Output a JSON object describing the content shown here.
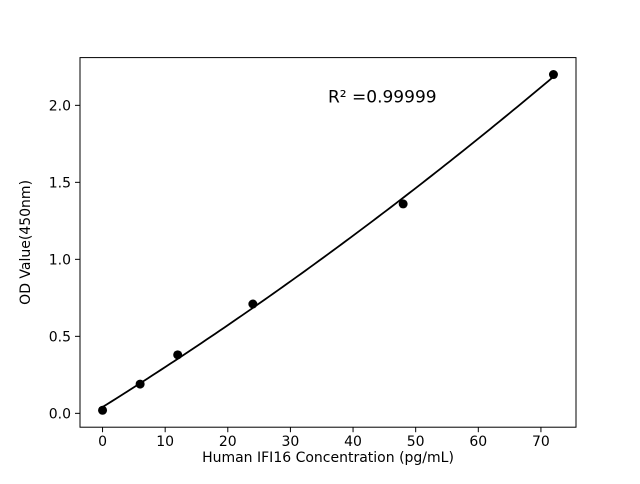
{
  "chart_data": {
    "type": "scatter",
    "x": [
      0,
      6,
      12,
      24,
      48,
      72
    ],
    "y": [
      0.02,
      0.19,
      0.38,
      0.71,
      1.36,
      2.2
    ],
    "fit": "quadratic",
    "title": "",
    "xlabel": "Human IFI16 Concentration (pg/mL)",
    "ylabel": "OD Value(450nm)",
    "xlim": [
      -3.6,
      75.6
    ],
    "ylim": [
      -0.09,
      2.31
    ],
    "xticks": [
      0,
      10,
      20,
      30,
      40,
      50,
      60,
      70
    ],
    "xtick_labels": [
      "0",
      "10",
      "20",
      "30",
      "40",
      "50",
      "60",
      "70"
    ],
    "yticks": [
      0.0,
      0.5,
      1.0,
      1.5,
      2.0
    ],
    "ytick_labels": [
      "0.0",
      "0.5",
      "1.0",
      "1.5",
      "2.0"
    ],
    "annotation": {
      "text": "R² =0.99999",
      "x": 36,
      "y": 2.02
    },
    "grid": false,
    "legend": null,
    "colors": {
      "line": "#000000",
      "marker": "#000000",
      "axis": "#000000",
      "background": "#ffffff"
    }
  }
}
